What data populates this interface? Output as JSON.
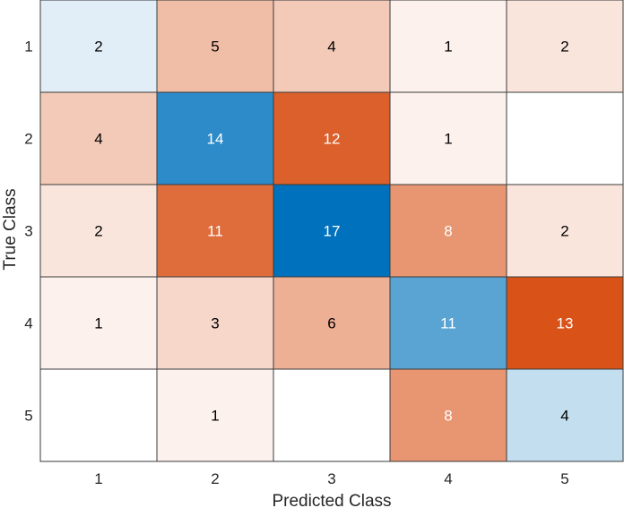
{
  "chart_data": {
    "type": "heatmap",
    "subtype": "confusion-matrix",
    "xlabel": "Predicted Class",
    "ylabel": "True Class",
    "x_categories": [
      "1",
      "2",
      "3",
      "4",
      "5"
    ],
    "y_categories": [
      "1",
      "2",
      "3",
      "4",
      "5"
    ],
    "values": [
      [
        2,
        5,
        4,
        1,
        2
      ],
      [
        4,
        14,
        12,
        1,
        null
      ],
      [
        2,
        11,
        17,
        8,
        2
      ],
      [
        1,
        3,
        6,
        11,
        13
      ],
      [
        null,
        1,
        null,
        8,
        4
      ]
    ],
    "diagonal_color": "#0072bd",
    "offdiagonal_color": "#d95319",
    "grid_color": "#3a3a3a",
    "text_dark": "#000000",
    "text_light": "#ffffff"
  }
}
